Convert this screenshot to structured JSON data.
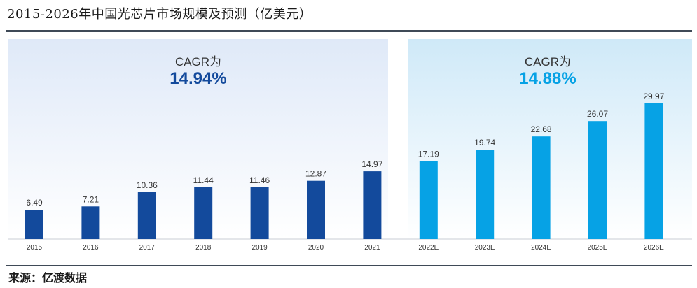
{
  "title": "2015-2026年中国光芯片市场规模及预测（亿美元）",
  "source": "来源：亿渡数据",
  "colors": {
    "historical_bar": "#134a9c",
    "forecast_bar": "#06a2e5",
    "historical_panel": "#e6eefa",
    "forecast_panel": "#d6eefa",
    "cagr_historical": "#134a9c",
    "cagr_forecast": "#06a2e5"
  },
  "panels": [
    {
      "cagr_label": "CAGR为",
      "cagr_value": "14.94%"
    },
    {
      "cagr_label": "CAGR为",
      "cagr_value": "14.88%"
    }
  ],
  "chart_data": {
    "type": "bar",
    "categories": [
      "2015",
      "2016",
      "2017",
      "2018",
      "2019",
      "2020",
      "2021",
      "2022E",
      "2023E",
      "2024E",
      "2025E",
      "2026E"
    ],
    "values": [
      6.49,
      7.21,
      10.36,
      11.44,
      11.46,
      12.87,
      14.97,
      17.19,
      19.74,
      22.68,
      26.07,
      29.97
    ],
    "data_labels": [
      "6.49",
      "7.21",
      "10.36",
      "11.44",
      "11.46",
      "12.87",
      "14.97",
      "17.19",
      "19.74",
      "22.68",
      "26.07",
      "29.97"
    ],
    "forecast_from_index": 7,
    "grid": false,
    "legend": "none",
    "ylim": [
      0,
      30
    ]
  }
}
